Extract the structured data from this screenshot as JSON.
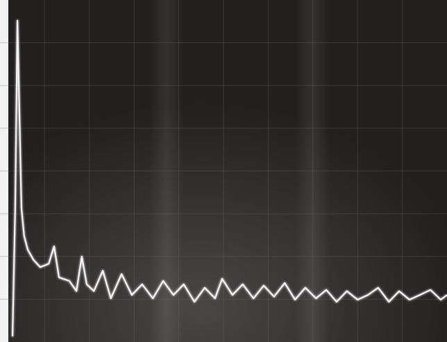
{
  "chart_data": {
    "type": "line",
    "x": [
      0.28,
      0.34,
      0.39,
      0.43,
      0.48,
      0.54,
      0.62,
      0.75,
      0.9,
      1.09,
      1.21,
      1.32,
      1.55,
      1.71,
      1.83,
      1.94,
      2.1,
      2.3,
      2.48,
      2.72,
      2.95,
      3.18,
      3.42,
      3.65,
      3.88,
      4.11,
      4.35,
      4.58,
      4.81,
      4.97,
      5.2,
      5.43,
      5.67,
      5.9,
      6.13,
      6.37,
      6.6,
      6.83,
      7.07,
      7.3,
      7.53,
      7.76,
      8.0,
      8.23,
      8.46,
      8.7,
      8.93,
      9.16,
      9.39,
      9.63,
      9.86,
      10
    ],
    "series": [
      {
        "color": "#f4f4f4",
        "values": [
          0.13,
          3.13,
          7.52,
          5.57,
          3.13,
          2.48,
          2.16,
          1.92,
          1.75,
          1.83,
          2.24,
          1.51,
          1.43,
          1.19,
          2.0,
          1.35,
          1.19,
          1.67,
          1.02,
          1.59,
          1.1,
          1.35,
          1.02,
          1.43,
          1.1,
          1.35,
          0.94,
          1.27,
          1.02,
          1.48,
          1.1,
          1.35,
          1.02,
          1.32,
          1.06,
          1.38,
          0.99,
          1.27,
          1.02,
          1.22,
          0.94,
          1.19,
          0.99,
          1.1,
          1.27,
          0.94,
          1.19,
          0.99,
          1.1,
          1.22,
          0.99,
          1.1
        ]
      }
    ],
    "xlim": [
      0,
      10
    ],
    "ylim": [
      0,
      8
    ]
  }
}
